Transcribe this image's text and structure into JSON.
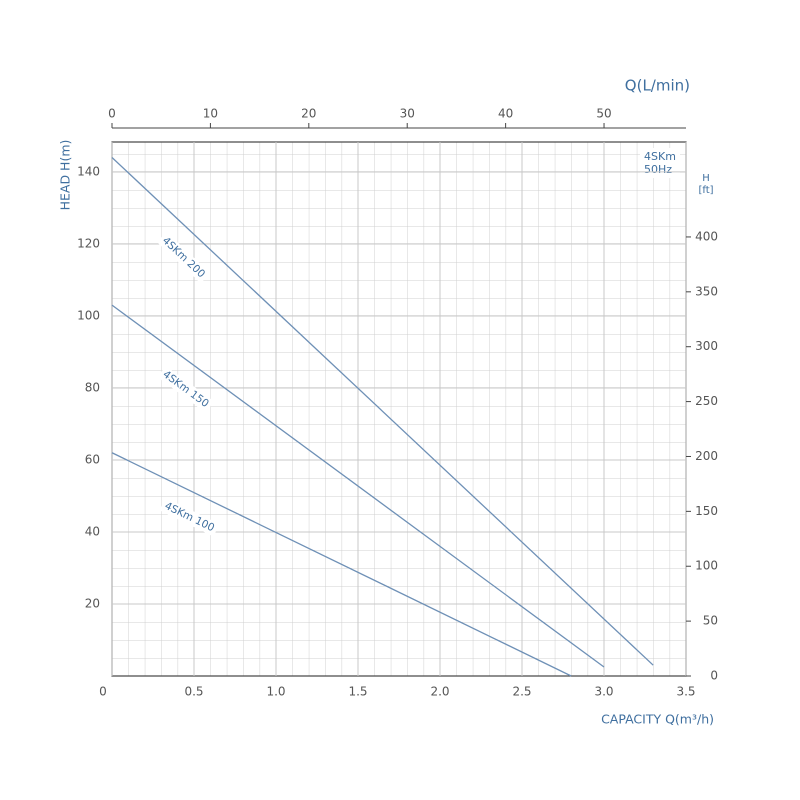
{
  "chart_data": {
    "type": "line",
    "x_label": "CAPACITY Q(m³/h)",
    "y_label": "HEAD H(m)",
    "x2_label": "Q(L/min)",
    "y2_label": [
      "H",
      "[ft]"
    ],
    "annotation": [
      "4SKm",
      "50Hz"
    ],
    "xlim": [
      0,
      3.5
    ],
    "xticks": [
      0,
      0.5,
      {
        "value": 1,
        "label": "1.0"
      },
      1.5,
      {
        "value": 2,
        "label": "2.0"
      },
      2.5,
      {
        "value": 3,
        "label": "3.0"
      },
      3.5
    ],
    "ylim": [
      0,
      148.3
    ],
    "yticks": [
      20,
      40,
      60,
      80,
      100,
      120,
      140
    ],
    "x2lim": [
      0,
      58.33
    ],
    "x2ticks": [
      0,
      10,
      20,
      30,
      40,
      50
    ],
    "y2lim": [
      0,
      486.5
    ],
    "y2ticks": [
      0,
      50,
      100,
      150,
      200,
      250,
      300,
      350,
      400
    ],
    "grid": true,
    "series": [
      {
        "name": "4SKm 200",
        "color": "#6e90b6",
        "x": [
          0,
          3.3
        ],
        "values": [
          144,
          3
        ]
      },
      {
        "name": "4SKm 150",
        "color": "#6e90b6",
        "x": [
          0,
          3.0
        ],
        "values": [
          103,
          2.5
        ]
      },
      {
        "name": "4SKm 100",
        "color": "#6e90b6",
        "x": [
          0,
          2.8
        ],
        "values": [
          62,
          0
        ]
      }
    ]
  }
}
